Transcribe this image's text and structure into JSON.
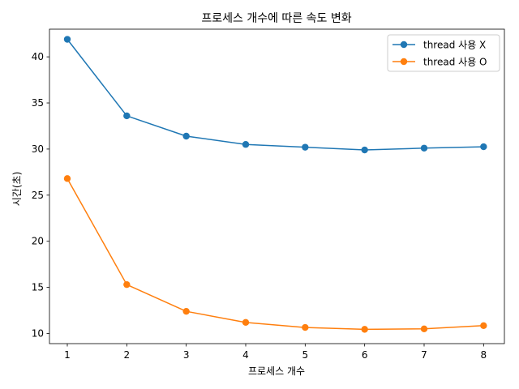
{
  "chart_data": {
    "type": "line",
    "title": "프로세스 개수에 따른 속도 변화",
    "xlabel": "프로세스 개수",
    "ylabel": "시간(초)",
    "x": [
      1,
      2,
      3,
      4,
      5,
      6,
      7,
      8
    ],
    "xlim": [
      0.7,
      8.35
    ],
    "ylim": [
      8.9,
      43.0
    ],
    "xticks": [
      1,
      2,
      3,
      4,
      5,
      6,
      7,
      8
    ],
    "yticks": [
      10,
      15,
      20,
      25,
      30,
      35,
      40
    ],
    "grid": false,
    "legend_position": "top-right",
    "series": [
      {
        "name": "thread 사용 X",
        "color": "#1f77b4",
        "values": [
          41.9,
          33.6,
          31.4,
          30.5,
          30.2,
          29.9,
          30.1,
          30.25
        ]
      },
      {
        "name": "thread 사용 O",
        "color": "#ff7f0e",
        "values": [
          26.8,
          15.3,
          12.4,
          11.2,
          10.65,
          10.45,
          10.5,
          10.85
        ]
      }
    ]
  }
}
